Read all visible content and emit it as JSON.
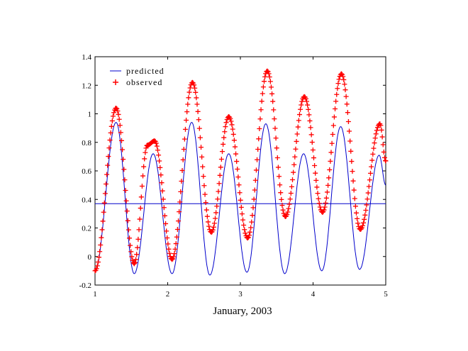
{
  "chart_data": {
    "type": "line",
    "title": "",
    "xlabel": "January, 2003",
    "ylabel": "",
    "xlim": [
      1,
      5
    ],
    "ylim": [
      -0.2,
      1.4
    ],
    "xticks": [
      "1",
      "2",
      "3",
      "4",
      "5"
    ],
    "yticks": [
      "-0.2",
      "0",
      "0.2",
      "0.4",
      "0.6",
      "0.8",
      "1",
      "1.2",
      "1.4"
    ],
    "grid": false,
    "legend_position": "top-left",
    "reference_line": {
      "y": 0.37,
      "color": "#0000cc"
    },
    "series": [
      {
        "name": "predicted",
        "marker": "line",
        "color": "#0000cc",
        "points": [
          [
            1.0,
            -0.1
          ],
          [
            1.29,
            0.94
          ],
          [
            1.54,
            -0.12
          ],
          [
            1.8,
            0.72
          ],
          [
            2.06,
            -0.12
          ],
          [
            2.33,
            0.94
          ],
          [
            2.58,
            -0.13
          ],
          [
            2.84,
            0.72
          ],
          [
            3.09,
            -0.11
          ],
          [
            3.35,
            0.93
          ],
          [
            3.61,
            -0.12
          ],
          [
            3.87,
            0.72
          ],
          [
            4.12,
            -0.1
          ],
          [
            4.38,
            0.91
          ],
          [
            4.64,
            -0.09
          ],
          [
            4.91,
            0.71
          ],
          [
            5.0,
            0.5
          ]
        ]
      },
      {
        "name": "observed",
        "marker": "+",
        "color": "#ff0000",
        "points": [
          [
            1.0,
            -0.1
          ],
          [
            1.29,
            1.04
          ],
          [
            1.54,
            -0.05
          ],
          [
            1.72,
            0.78
          ],
          [
            1.82,
            0.81
          ],
          [
            2.06,
            -0.02
          ],
          [
            2.34,
            1.22
          ],
          [
            2.6,
            0.17
          ],
          [
            2.84,
            0.98
          ],
          [
            3.1,
            0.13
          ],
          [
            3.37,
            1.3
          ],
          [
            3.62,
            0.28
          ],
          [
            3.88,
            1.12
          ],
          [
            4.13,
            0.31
          ],
          [
            4.39,
            1.28
          ],
          [
            4.65,
            0.19
          ],
          [
            4.92,
            0.93
          ],
          [
            5.0,
            0.67
          ]
        ]
      }
    ]
  }
}
